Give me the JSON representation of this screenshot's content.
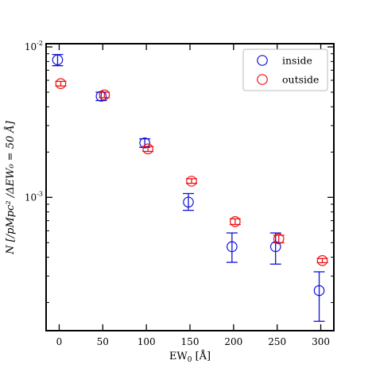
{
  "chart_data": {
    "type": "scatter",
    "yscale": "log",
    "xlim": [
      -15,
      315
    ],
    "ylim": [
      0.00013,
      0.0105
    ],
    "x_ticks": [
      0,
      50,
      100,
      150,
      200,
      250,
      300
    ],
    "x_tick_labels": [
      "0",
      "50",
      "100",
      "150",
      "200",
      "250",
      "300"
    ],
    "y_major_ticks": [
      0.001,
      0.01
    ],
    "y_tick_labels": {
      "base": "10",
      "exponents": [
        "-3",
        "-2"
      ]
    },
    "y_minor_ticks": [
      0.0002,
      0.0003,
      0.0004,
      0.0005,
      0.0006,
      0.0007,
      0.0008,
      0.0009,
      0.002,
      0.003,
      0.004,
      0.005,
      0.006,
      0.007,
      0.008,
      0.009
    ],
    "xlabel": {
      "main": "EW",
      "sub": "0",
      "unit": " [Å]"
    },
    "ylabel": {
      "text": "N [/pMpc² /ΔEW₀ = 50 Å]"
    },
    "legend": {
      "position": "top-right"
    },
    "grid": false,
    "series": [
      {
        "name": "inside",
        "color": "#1010dd",
        "x": [
          0,
          50,
          100,
          150,
          200,
          250,
          300
        ],
        "y": [
          0.0082,
          0.0047,
          0.0023,
          0.00093,
          0.00047,
          0.00047,
          0.00024
        ],
        "y_low": [
          0.0075,
          0.0044,
          0.00215,
          0.00082,
          0.00037,
          0.00036,
          0.00015
        ],
        "y_high": [
          0.0089,
          0.005,
          0.00245,
          0.00106,
          0.00058,
          0.00058,
          0.00032
        ],
        "x_offset": [
          -2,
          -2,
          -2,
          -2,
          -2,
          -2,
          -2
        ]
      },
      {
        "name": "outside",
        "color": "#ee1111",
        "x": [
          0,
          50,
          100,
          150,
          200,
          250,
          300
        ],
        "y": [
          0.0057,
          0.0048,
          0.0021,
          0.00128,
          0.00069,
          0.00053,
          0.00038
        ],
        "y_low": [
          0.0055,
          0.0046,
          0.00202,
          0.00124,
          0.00066,
          0.0005,
          0.000368
        ],
        "y_high": [
          0.0059,
          0.005,
          0.00218,
          0.00133,
          0.00072,
          0.00056,
          0.000392
        ],
        "x_offset": [
          2,
          2,
          2,
          2,
          2,
          2,
          2
        ]
      }
    ]
  }
}
